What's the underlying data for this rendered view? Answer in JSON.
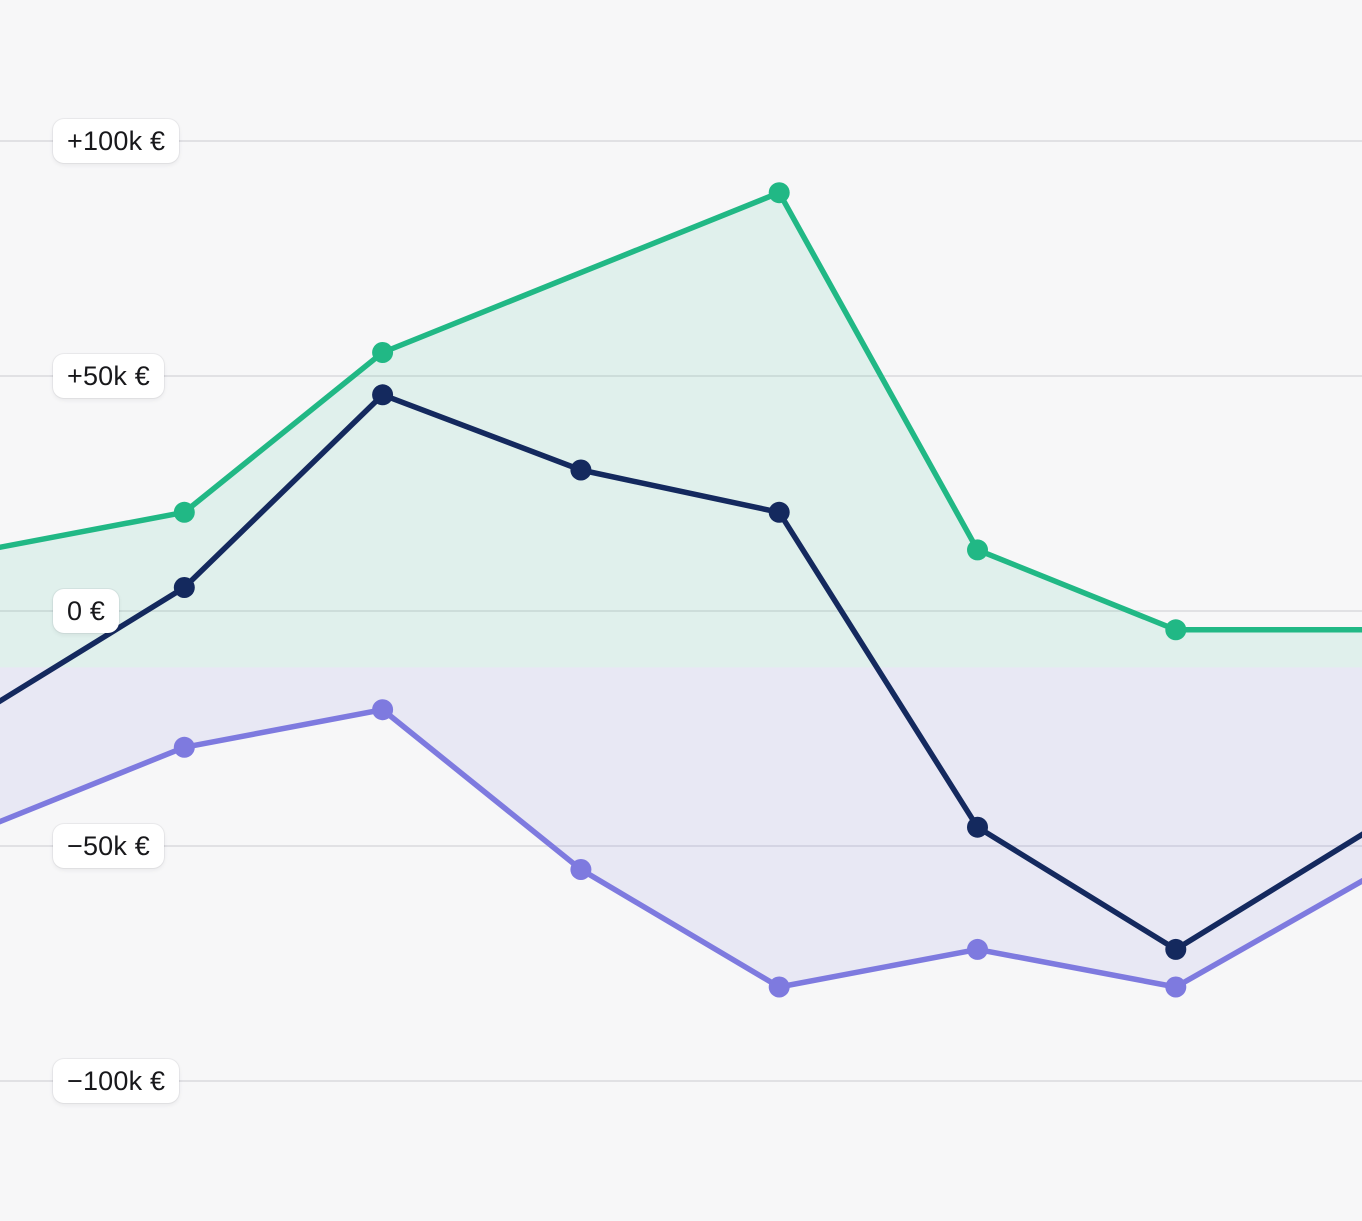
{
  "chart_data": {
    "type": "area",
    "unit": "thousand EUR (k)",
    "x": [
      0,
      1,
      2,
      3,
      4,
      5,
      6,
      7
    ],
    "x_note": "evenly spaced periods; x tick labels are cropped out of the visible screenshot",
    "y_axis": {
      "ticks": [
        {
          "value": 100,
          "label": "+100k €"
        },
        {
          "value": 50,
          "label": "+50k €"
        },
        {
          "value": 0,
          "label": "0 €"
        },
        {
          "value": -50,
          "label": "−50k €"
        },
        {
          "value": -100,
          "label": "−100k €"
        }
      ],
      "ylim": [
        -130,
        130
      ],
      "grid": true
    },
    "fill_baseline_value": -12,
    "series": [
      {
        "name": "green-line",
        "color": "#21b885",
        "fill": "rgba(33,184,133,0.10)",
        "values": [
          13,
          21,
          55,
          72,
          89,
          13,
          -4,
          -4
        ],
        "dot_indices": [
          1,
          2,
          4,
          5,
          6
        ]
      },
      {
        "name": "navy-line",
        "color": "#14295e",
        "fill": null,
        "values": [
          -21,
          5,
          46,
          30,
          21,
          -46,
          -72,
          -46
        ],
        "dot_indices": [
          1,
          2,
          3,
          4,
          5,
          6
        ]
      },
      {
        "name": "purple-line",
        "color": "#7e7adf",
        "fill": "rgba(126,122,223,0.12)",
        "values": [
          -46,
          -29,
          -21,
          -55,
          -80,
          -72,
          -80,
          -56
        ],
        "dot_indices": [
          1,
          2,
          3,
          4,
          5,
          6
        ]
      }
    ],
    "colors": {
      "background": "#f7f7f8",
      "gridline": "#e1e1e4",
      "label_text": "#18181b",
      "label_bg": "#ffffff"
    }
  }
}
